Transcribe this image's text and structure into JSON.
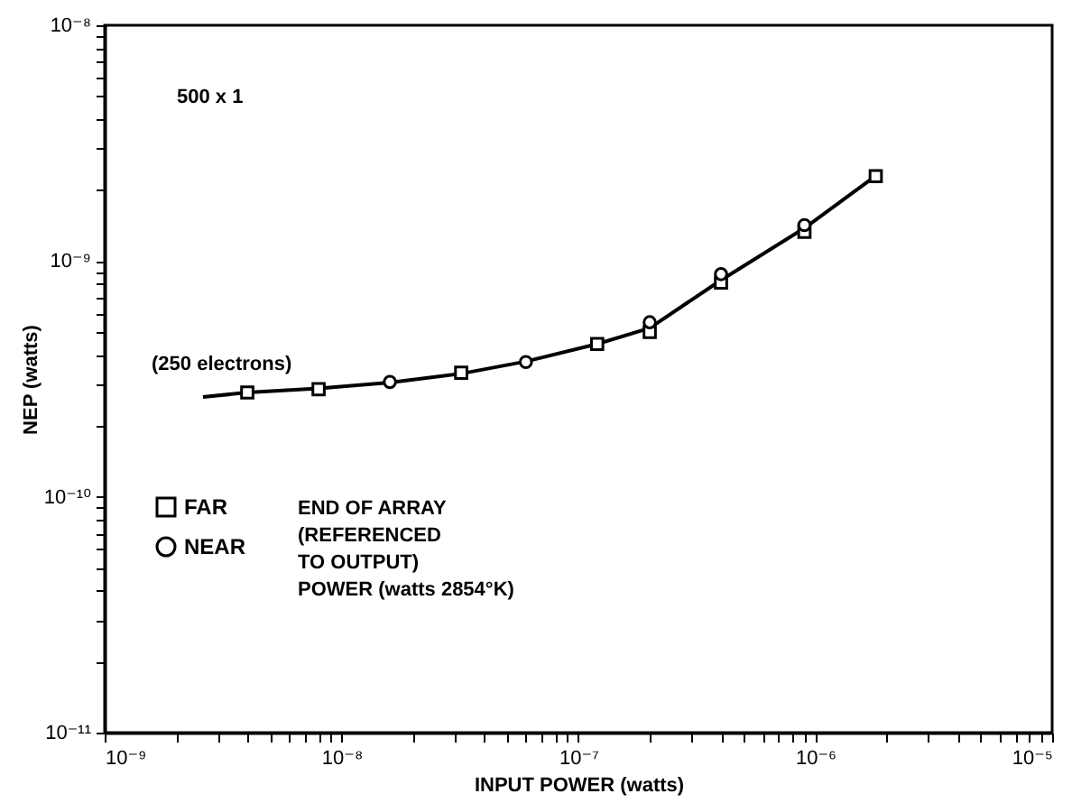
{
  "chart_data": {
    "type": "scatter",
    "xlabel": "INPUT POWER (watts)",
    "ylabel": "NEP (watts)",
    "log": "xy",
    "grid": false,
    "legend": "left",
    "annotations": [
      "500 x 1",
      "(250 electrons)",
      "END OF ARRAY\n(REFERENCED\n TO OUTPUT)\nPOWER (watts 2854°K)"
    ],
    "xlim": [
      1e-09,
      1e-05
    ],
    "ylim": [
      1e-11,
      1e-08
    ],
    "xticks": [
      {
        "value": 1e-09,
        "label": "10⁻⁹"
      },
      {
        "value": 2e-09,
        "label": null
      },
      {
        "value": 3e-09,
        "label": null
      },
      {
        "value": 4e-09,
        "label": null
      },
      {
        "value": 5e-09,
        "label": null
      },
      {
        "value": 6e-09,
        "label": null
      },
      {
        "value": 7e-09,
        "label": null
      },
      {
        "value": 8e-09,
        "label": null
      },
      {
        "value": 9e-09,
        "label": null
      },
      {
        "value": 1e-08,
        "label": "10⁻⁸"
      },
      {
        "value": 2e-08,
        "label": null
      },
      {
        "value": 3e-08,
        "label": null
      },
      {
        "value": 4e-08,
        "label": null
      },
      {
        "value": 5e-08,
        "label": null
      },
      {
        "value": 6e-08,
        "label": null
      },
      {
        "value": 7e-08,
        "label": null
      },
      {
        "value": 8e-08,
        "label": null
      },
      {
        "value": 9e-08,
        "label": null
      },
      {
        "value": 1e-07,
        "label": "10⁻⁷"
      },
      {
        "value": 2e-07,
        "label": null
      },
      {
        "value": 3e-07,
        "label": null
      },
      {
        "value": 4e-07,
        "label": null
      },
      {
        "value": 5e-07,
        "label": null
      },
      {
        "value": 6e-07,
        "label": null
      },
      {
        "value": 7e-07,
        "label": null
      },
      {
        "value": 8e-07,
        "label": null
      },
      {
        "value": 9e-07,
        "label": null
      },
      {
        "value": 1e-06,
        "label": "10⁻⁶"
      },
      {
        "value": 2e-06,
        "label": null
      },
      {
        "value": 3e-06,
        "label": null
      },
      {
        "value": 4e-06,
        "label": null
      },
      {
        "value": 5e-06,
        "label": null
      },
      {
        "value": 6e-06,
        "label": null
      },
      {
        "value": 7e-06,
        "label": null
      },
      {
        "value": 8e-06,
        "label": null
      },
      {
        "value": 9e-06,
        "label": null
      },
      {
        "value": 1e-05,
        "label": "10⁻⁵"
      }
    ],
    "yticks": [
      {
        "value": 1e-11,
        "label": "10⁻¹¹"
      },
      {
        "value": 2e-11,
        "label": null
      },
      {
        "value": 3e-11,
        "label": null
      },
      {
        "value": 4e-11,
        "label": null
      },
      {
        "value": 5e-11,
        "label": null
      },
      {
        "value": 6e-11,
        "label": null
      },
      {
        "value": 7e-11,
        "label": null
      },
      {
        "value": 8e-11,
        "label": null
      },
      {
        "value": 9e-11,
        "label": null
      },
      {
        "value": 1e-10,
        "label": "10⁻¹⁰"
      },
      {
        "value": 2e-10,
        "label": null
      },
      {
        "value": 3e-10,
        "label": null
      },
      {
        "value": 4e-10,
        "label": null
      },
      {
        "value": 5e-10,
        "label": null
      },
      {
        "value": 6e-10,
        "label": null
      },
      {
        "value": 7e-10,
        "label": null
      },
      {
        "value": 8e-10,
        "label": null
      },
      {
        "value": 9e-10,
        "label": null
      },
      {
        "value": 1e-09,
        "label": "10⁻⁹"
      },
      {
        "value": 2e-09,
        "label": null
      },
      {
        "value": 3e-09,
        "label": null
      },
      {
        "value": 4e-09,
        "label": null
      },
      {
        "value": 5e-09,
        "label": null
      },
      {
        "value": 6e-09,
        "label": null
      },
      {
        "value": 7e-09,
        "label": null
      },
      {
        "value": 8e-09,
        "label": null
      },
      {
        "value": 9e-09,
        "label": null
      },
      {
        "value": 1e-08,
        "label": "10⁻⁸"
      }
    ],
    "series": [
      {
        "type": "line",
        "color": "#000000",
        "marker": "none",
        "x": [
          2.6e-09,
          4e-09,
          8e-09,
          1.6e-08,
          3.2e-08,
          6e-08,
          1.2e-07,
          2e-07,
          4e-07,
          9e-07,
          1.8e-06
        ],
        "values": [
          2.65e-10,
          2.77e-10,
          2.88e-10,
          3.05e-10,
          3.33e-10,
          3.75e-10,
          4.45e-10,
          5.2e-10,
          8.3e-10,
          1.38e-09,
          2.3e-09
        ]
      },
      {
        "name": "FAR",
        "color": "#000000",
        "marker": "square",
        "x": [
          4e-09,
          8e-09,
          3.2e-08,
          1.2e-07,
          2e-07,
          4e-07,
          9e-07,
          1.8e-06
        ],
        "values": [
          2.77e-10,
          2.86e-10,
          3.36e-10,
          4.45e-10,
          5e-10,
          8.1e-10,
          1.33e-09,
          2.29e-09
        ]
      },
      {
        "name": "NEAR",
        "color": "#000000",
        "marker": "circle",
        "x": [
          1.6e-08,
          6e-08,
          2e-07,
          4e-07,
          9e-07
        ],
        "values": [
          3.07e-10,
          3.73e-10,
          5.5e-10,
          8.8e-10,
          1.42e-09
        ]
      }
    ]
  }
}
